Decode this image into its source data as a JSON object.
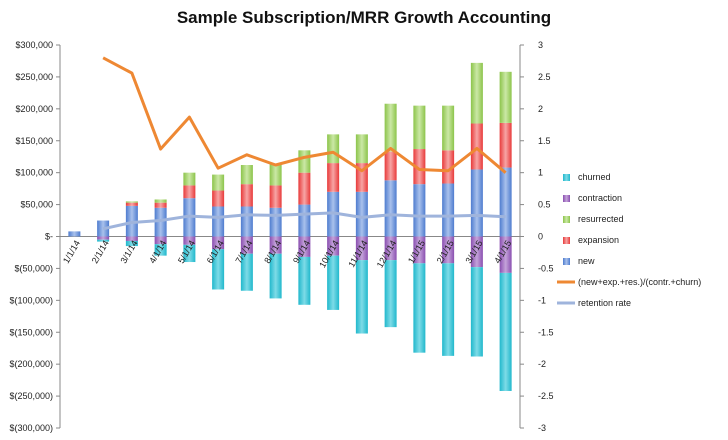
{
  "chart_data": {
    "type": "bar",
    "title": "Sample Subscription/MRR Growth Accounting",
    "categories": [
      "1/1/14",
      "2/1/14",
      "3/1/14",
      "4/1/14",
      "5/1/14",
      "6/1/14",
      "7/1/14",
      "8/1/14",
      "9/1/14",
      "10/1/14",
      "11/1/14",
      "12/1/14",
      "1/1/15",
      "2/1/15",
      "3/1/15",
      "4/1/15"
    ],
    "stacked": true,
    "y_left": {
      "min": -300000,
      "max": 300000,
      "step": 50000,
      "tick_labels": [
        "$(300,000)",
        "$(250,000)",
        "$(200,000)",
        "$(150,000)",
        "$(100,000)",
        "$(50,000)",
        "$-",
        "$50,000",
        "$100,000",
        "$150,000",
        "$200,000",
        "$250,000",
        "$300,000"
      ]
    },
    "y_right": {
      "min": -3,
      "max": 3,
      "step": 0.5,
      "tick_labels": [
        "-3",
        "-2.5",
        "-2",
        "-1.5",
        "-1",
        "-0.5",
        "0",
        "0.5",
        "1",
        "1.5",
        "2",
        "2.5",
        "3"
      ]
    },
    "series": [
      {
        "name": "churned",
        "color": "#3dc6d8",
        "values": [
          0,
          -3000,
          -8000,
          -18000,
          -27000,
          -63000,
          -58000,
          -70000,
          -75000,
          -85000,
          -115000,
          -105000,
          -140000,
          -145000,
          -140000,
          -185000
        ]
      },
      {
        "name": "contraction",
        "color": "#9966bb",
        "values": [
          0,
          -5000,
          -7000,
          -12000,
          -13000,
          -20000,
          -27000,
          -27000,
          -32000,
          -30000,
          -37000,
          -37000,
          -42000,
          -42000,
          -48000,
          -57000
        ]
      },
      {
        "name": "resurrected",
        "color": "#99cc55",
        "values": [
          0,
          0,
          2000,
          5000,
          20000,
          25000,
          30000,
          33000,
          35000,
          45000,
          45000,
          75000,
          68000,
          70000,
          95000,
          80000
        ]
      },
      {
        "name": "expansion",
        "color": "#ee4a4a",
        "values": [
          0,
          0,
          5000,
          8000,
          20000,
          25000,
          35000,
          35000,
          50000,
          45000,
          45000,
          45000,
          55000,
          52000,
          72000,
          70000
        ]
      },
      {
        "name": "new",
        "color": "#5b86d4",
        "values": [
          8000,
          25000,
          48000,
          45000,
          60000,
          47000,
          47000,
          45000,
          50000,
          70000,
          70000,
          88000,
          82000,
          83000,
          105000,
          108000
        ]
      },
      {
        "name": "(new+exp.+res.)/(contr.+churn)",
        "kind": "line",
        "axis": "right",
        "color": "#ee8833",
        "values": [
          null,
          2.8,
          2.56,
          1.37,
          1.87,
          1.07,
          1.28,
          1.12,
          1.24,
          1.32,
          1.03,
          1.38,
          1.05,
          1.03,
          1.38,
          1.0
        ]
      },
      {
        "name": "retention rate",
        "kind": "line",
        "axis": "right",
        "color": "#9fb4dc",
        "values": [
          null,
          0.12,
          0.22,
          0.25,
          0.32,
          0.3,
          0.34,
          0.33,
          0.35,
          0.37,
          0.3,
          0.34,
          0.32,
          0.32,
          0.33,
          0.31
        ]
      }
    ],
    "legend": [
      "churned",
      "contraction",
      "resurrected",
      "expansion",
      "new",
      "(new+exp.+res.)/(contr.+churn)",
      "retention rate"
    ],
    "legend_position": "right",
    "grid": false
  }
}
